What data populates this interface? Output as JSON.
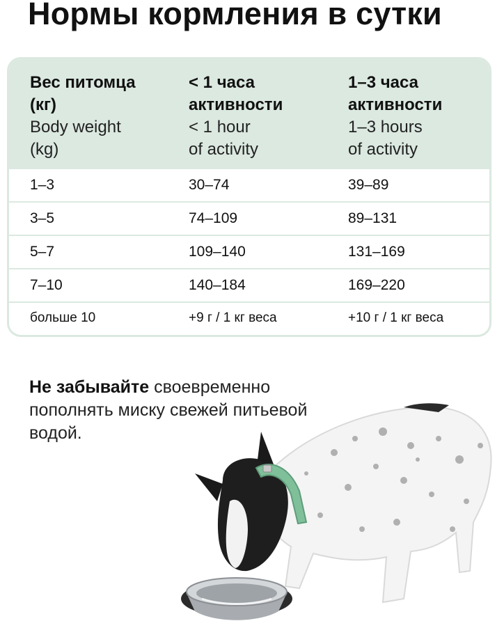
{
  "title": "Нормы кормления в сутки",
  "table": {
    "headers": [
      {
        "ru": "Вес питомца\n(кг)",
        "en": "Body weight\n(kg)"
      },
      {
        "ru": "< 1 часа\nактивности",
        "en": "< 1 hour\nof activity"
      },
      {
        "ru": "1–3 часа\nактивности",
        "en": "1–3 hours\nof activity"
      }
    ],
    "rows": [
      [
        "1–3",
        "30–74",
        "39–89"
      ],
      [
        "3–5",
        "74–109",
        "89–131"
      ],
      [
        "5–7",
        "109–140",
        "131–169"
      ],
      [
        "7–10",
        "140–184",
        "169–220"
      ],
      [
        "больше 10",
        "+9 г / 1 кг веса",
        "+10 г / 1 кг веса"
      ]
    ]
  },
  "note": {
    "bold": "Не забывайте",
    "text": " своевременно пополнять миску свежей питьевой водой."
  },
  "colors": {
    "header_bg": "#dbe9e0",
    "collar": "#7fbf9a"
  },
  "icons": [
    "dog-drinking-illustration",
    "water-bowl-icon"
  ]
}
